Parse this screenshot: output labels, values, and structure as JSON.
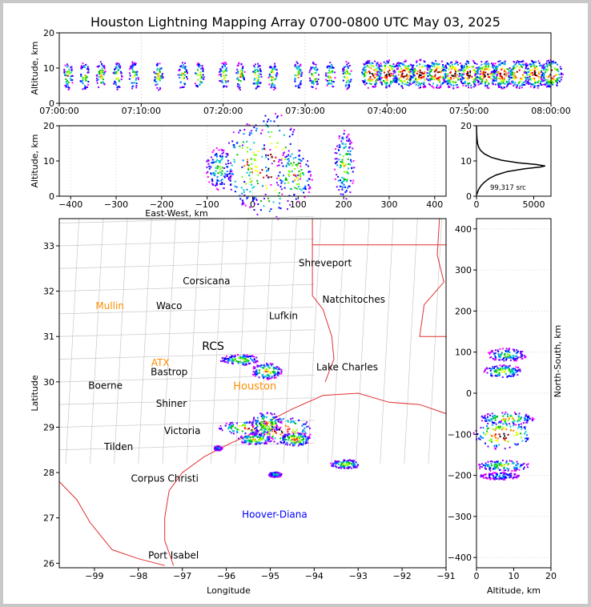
{
  "chart_data": [
    {
      "type": "heatmap",
      "panel": "altitude-time",
      "title": "Houston Lightning Mapping Array 0700-0800 UTC May 03, 2025",
      "xlabel": "",
      "ylabel": "Altitude, km",
      "x_ticks": [
        "07:00:00",
        "07:10:00",
        "07:20:00",
        "07:30:00",
        "07:40:00",
        "07:50:00",
        "08:00:00"
      ],
      "xlim": [
        "07:00:00",
        "08:00:00"
      ],
      "ylim": [
        0,
        20
      ],
      "y_ticks": [
        0,
        10,
        20
      ],
      "series": [
        {
          "cluster": "scattered-cells",
          "t_min": [
            1,
            3,
            5,
            7,
            9,
            12,
            15,
            17,
            20,
            22,
            24,
            26,
            29,
            31,
            33,
            35
          ],
          "alt_km": 8
        },
        {
          "cluster": "dense-line",
          "t_min": [
            38,
            40,
            42,
            44,
            46,
            48,
            50,
            52,
            54,
            56,
            58,
            60
          ],
          "alt_km": 8.5
        }
      ]
    },
    {
      "type": "heatmap",
      "panel": "altitude-east-west",
      "xlabel": "East-West, km",
      "ylabel": "Altitude, km",
      "xlim": [
        -425,
        425
      ],
      "ylim": [
        0,
        20
      ],
      "x_ticks": [
        -400,
        -300,
        -200,
        -100,
        0,
        100,
        200,
        300,
        400
      ],
      "y_ticks": [
        0,
        10,
        20
      ],
      "clusters": [
        {
          "x_km": -75,
          "alt_km": 8,
          "w_km": 30,
          "h_km": 6,
          "intensity": 0.5
        },
        {
          "x_km": -10,
          "alt_km": 9,
          "w_km": 55,
          "h_km": 12,
          "intensity": 0.8
        },
        {
          "x_km": 35,
          "alt_km": 9,
          "w_km": 70,
          "h_km": 16,
          "intensity": 1.0
        },
        {
          "x_km": 90,
          "alt_km": 6,
          "w_km": 40,
          "h_km": 8,
          "intensity": 0.7
        },
        {
          "x_km": 200,
          "alt_km": 9,
          "w_km": 22,
          "h_km": 10,
          "intensity": 0.6
        }
      ]
    },
    {
      "type": "line",
      "panel": "source-histogram",
      "xlim": [
        0,
        6500
      ],
      "ylim": [
        0,
        20
      ],
      "x_ticks": [
        0,
        5000
      ],
      "y_ticks": [
        0,
        10,
        20
      ],
      "annotation": "99,317 src",
      "points": [
        [
          0,
          0.3
        ],
        [
          80,
          1
        ],
        [
          200,
          2
        ],
        [
          400,
          3
        ],
        [
          700,
          4
        ],
        [
          1100,
          5
        ],
        [
          1700,
          6
        ],
        [
          2700,
          7
        ],
        [
          4200,
          7.8
        ],
        [
          5600,
          8.3
        ],
        [
          6000,
          8.6
        ],
        [
          5200,
          9
        ],
        [
          3600,
          9.5
        ],
        [
          2200,
          10.2
        ],
        [
          1300,
          11
        ],
        [
          700,
          12
        ],
        [
          350,
          13
        ],
        [
          180,
          14
        ],
        [
          90,
          15
        ],
        [
          40,
          16.5
        ],
        [
          15,
          18
        ],
        [
          0,
          20
        ]
      ]
    },
    {
      "type": "heatmap",
      "panel": "plan-view-map",
      "xlabel": "Longitude",
      "ylabel": "Latitude",
      "xlim": [
        -99.8,
        -91
      ],
      "ylim": [
        25.9,
        33.6
      ],
      "x_ticks": [
        -99,
        -98,
        -97,
        -96,
        -95,
        -94,
        -93,
        -92,
        -91
      ],
      "y_ticks": [
        26,
        27,
        28,
        29,
        30,
        31,
        32,
        33
      ],
      "clusters": [
        {
          "lon": -95.7,
          "lat": 30.5,
          "w": 0.45,
          "h": 0.12,
          "intensity": 0.6
        },
        {
          "lon": -95.1,
          "lat": 30.25,
          "w": 0.35,
          "h": 0.18,
          "intensity": 0.7
        },
        {
          "lon": -95.5,
          "lat": 29.0,
          "w": 0.7,
          "h": 0.15,
          "intensity": 0.8
        },
        {
          "lon": -95.1,
          "lat": 29.1,
          "w": 0.35,
          "h": 0.25,
          "intensity": 0.7
        },
        {
          "lon": -94.75,
          "lat": 28.95,
          "w": 0.7,
          "h": 0.3,
          "intensity": 1.0
        },
        {
          "lon": -94.45,
          "lat": 28.75,
          "w": 0.35,
          "h": 0.15,
          "intensity": 0.8
        },
        {
          "lon": -95.35,
          "lat": 28.75,
          "w": 0.4,
          "h": 0.12,
          "intensity": 0.7
        },
        {
          "lon": -93.3,
          "lat": 28.2,
          "w": 0.35,
          "h": 0.1,
          "intensity": 0.6
        },
        {
          "lon": -94.9,
          "lat": 27.97,
          "w": 0.15,
          "h": 0.06,
          "intensity": 0.4
        },
        {
          "lon": -96.2,
          "lat": 28.55,
          "w": 0.1,
          "h": 0.05,
          "intensity": 0.3
        }
      ],
      "places": [
        {
          "name": "Shreveport",
          "lon": -93.75,
          "lat": 32.55,
          "color": "#000000"
        },
        {
          "name": "Corsicana",
          "lon": -96.45,
          "lat": 32.15,
          "color": "#000000"
        },
        {
          "name": "Natchitoches",
          "lon": -93.1,
          "lat": 31.75,
          "color": "#000000"
        },
        {
          "name": "Mullin",
          "lon": -98.65,
          "lat": 31.6,
          "color": "#ff8c00"
        },
        {
          "name": "Waco",
          "lon": -97.3,
          "lat": 31.6,
          "color": "#000000"
        },
        {
          "name": "Lufkin",
          "lon": -94.7,
          "lat": 31.38,
          "color": "#000000"
        },
        {
          "name": "RCS",
          "lon": -96.3,
          "lat": 30.7,
          "color": "#000000"
        },
        {
          "name": "ATX",
          "lon": -97.5,
          "lat": 30.35,
          "color": "#ff8c00"
        },
        {
          "name": "Bastrop",
          "lon": -97.3,
          "lat": 30.15,
          "color": "#000000"
        },
        {
          "name": "Lake Charles",
          "lon": -93.25,
          "lat": 30.25,
          "color": "#000000"
        },
        {
          "name": "Boerne",
          "lon": -98.75,
          "lat": 29.85,
          "color": "#000000"
        },
        {
          "name": "Houston",
          "lon": -95.35,
          "lat": 29.83,
          "color": "#ff8c00"
        },
        {
          "name": "Shiner",
          "lon": -97.25,
          "lat": 29.45,
          "color": "#000000"
        },
        {
          "name": "Victoria",
          "lon": -97.0,
          "lat": 28.85,
          "color": "#000000"
        },
        {
          "name": "Tilden",
          "lon": -98.45,
          "lat": 28.5,
          "color": "#000000"
        },
        {
          "name": "Corpus Christi",
          "lon": -97.4,
          "lat": 27.8,
          "color": "#000000"
        },
        {
          "name": "Hoover-Diana",
          "lon": -94.9,
          "lat": 27.0,
          "color": "#0000ff"
        },
        {
          "name": "Port Isabel",
          "lon": -97.2,
          "lat": 26.1,
          "color": "#000000"
        }
      ]
    },
    {
      "type": "heatmap",
      "panel": "north-south-altitude",
      "xlabel": "Altitude, km",
      "ylabel": "North-South, km",
      "xlim": [
        0,
        20
      ],
      "ylim": [
        -425,
        425
      ],
      "x_ticks": [
        0,
        10,
        20
      ],
      "y_ticks": [
        -400,
        -300,
        -200,
        -100,
        0,
        100,
        200,
        300,
        400
      ],
      "clusters": [
        {
          "alt_km": 8,
          "y_km": 95,
          "w_km": 8,
          "h_km": 20,
          "intensity": 0.5
        },
        {
          "alt_km": 7,
          "y_km": 55,
          "w_km": 8,
          "h_km": 20,
          "intensity": 0.6
        },
        {
          "alt_km": 8,
          "y_km": -60,
          "w_km": 12,
          "h_km": 20,
          "intensity": 0.7
        },
        {
          "alt_km": 7,
          "y_km": -100,
          "w_km": 14,
          "h_km": 60,
          "intensity": 1.0
        },
        {
          "alt_km": 7,
          "y_km": -175,
          "w_km": 12,
          "h_km": 15,
          "intensity": 0.6
        },
        {
          "alt_km": 6,
          "y_km": -200,
          "w_km": 8,
          "h_km": 6,
          "intensity": 0.3
        }
      ]
    }
  ]
}
